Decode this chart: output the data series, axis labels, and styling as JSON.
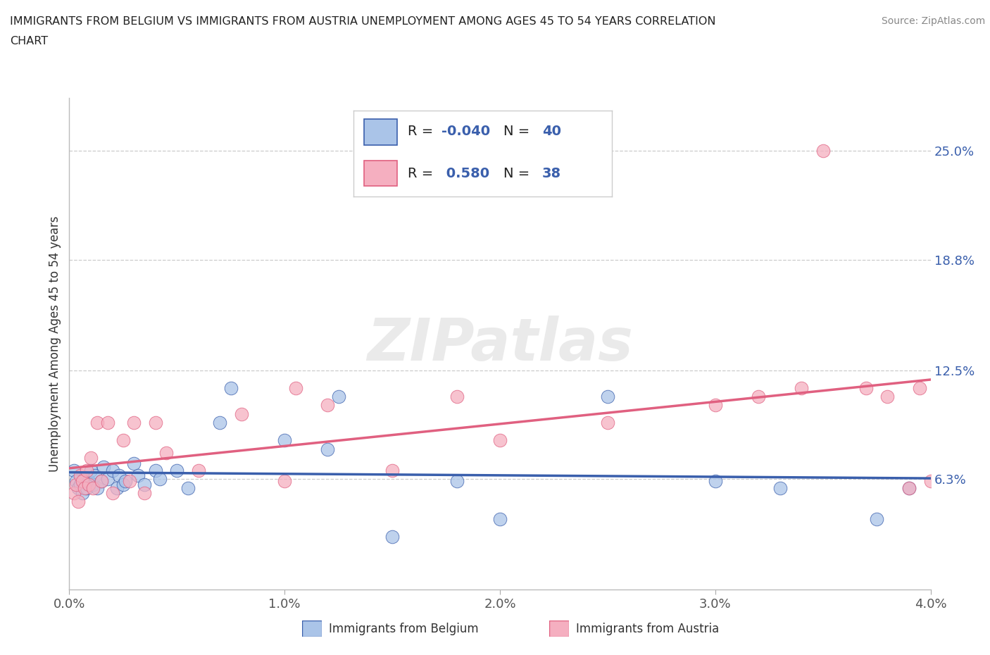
{
  "title_line1": "IMMIGRANTS FROM BELGIUM VS IMMIGRANTS FROM AUSTRIA UNEMPLOYMENT AMONG AGES 45 TO 54 YEARS CORRELATION",
  "title_line2": "CHART",
  "source": "Source: ZipAtlas.com",
  "ylabel": "Unemployment Among Ages 45 to 54 years",
  "xlim": [
    0.0,
    0.04
  ],
  "ylim": [
    0.0,
    0.28
  ],
  "yticks": [
    0.063,
    0.125,
    0.188,
    0.25
  ],
  "ytick_labels": [
    "6.3%",
    "12.5%",
    "18.8%",
    "25.0%"
  ],
  "xticks": [
    0.0,
    0.01,
    0.02,
    0.03,
    0.04
  ],
  "xtick_labels": [
    "0.0%",
    "1.0%",
    "2.0%",
    "3.0%",
    "4.0%"
  ],
  "belgium_color": "#aac4e8",
  "austria_color": "#f5afc0",
  "belgium_line_color": "#3a5fac",
  "austria_line_color": "#e06080",
  "belgium_R": -0.04,
  "belgium_N": 40,
  "austria_R": 0.58,
  "austria_N": 38,
  "watermark": "ZIPatlas",
  "background_color": "#ffffff",
  "grid_color": "#cccccc",
  "belgium_x": [
    0.0002,
    0.0003,
    0.0004,
    0.0005,
    0.0006,
    0.0007,
    0.0008,
    0.0009,
    0.001,
    0.0011,
    0.0012,
    0.0013,
    0.0015,
    0.0016,
    0.0018,
    0.002,
    0.0022,
    0.0023,
    0.0025,
    0.0026,
    0.003,
    0.0032,
    0.0035,
    0.004,
    0.0042,
    0.005,
    0.0055,
    0.007,
    0.0075,
    0.01,
    0.012,
    0.0125,
    0.015,
    0.018,
    0.02,
    0.025,
    0.03,
    0.033,
    0.0375,
    0.039
  ],
  "belgium_y": [
    0.068,
    0.062,
    0.058,
    0.06,
    0.055,
    0.063,
    0.058,
    0.062,
    0.068,
    0.06,
    0.065,
    0.058,
    0.062,
    0.07,
    0.063,
    0.068,
    0.058,
    0.065,
    0.06,
    0.062,
    0.072,
    0.065,
    0.06,
    0.068,
    0.063,
    0.068,
    0.058,
    0.095,
    0.115,
    0.085,
    0.08,
    0.11,
    0.03,
    0.062,
    0.04,
    0.11,
    0.062,
    0.058,
    0.04,
    0.058
  ],
  "austria_x": [
    0.0002,
    0.0003,
    0.0004,
    0.0005,
    0.0006,
    0.0007,
    0.0008,
    0.0009,
    0.001,
    0.0011,
    0.0013,
    0.0015,
    0.0018,
    0.002,
    0.0025,
    0.0028,
    0.003,
    0.0035,
    0.004,
    0.0045,
    0.006,
    0.008,
    0.01,
    0.0105,
    0.012,
    0.015,
    0.018,
    0.02,
    0.025,
    0.03,
    0.032,
    0.034,
    0.035,
    0.037,
    0.038,
    0.039,
    0.0395,
    0.04
  ],
  "austria_y": [
    0.055,
    0.06,
    0.05,
    0.065,
    0.062,
    0.058,
    0.068,
    0.06,
    0.075,
    0.058,
    0.095,
    0.062,
    0.095,
    0.055,
    0.085,
    0.062,
    0.095,
    0.055,
    0.095,
    0.078,
    0.068,
    0.1,
    0.062,
    0.115,
    0.105,
    0.068,
    0.11,
    0.085,
    0.095,
    0.105,
    0.11,
    0.115,
    0.25,
    0.115,
    0.11,
    0.058,
    0.115,
    0.062
  ]
}
